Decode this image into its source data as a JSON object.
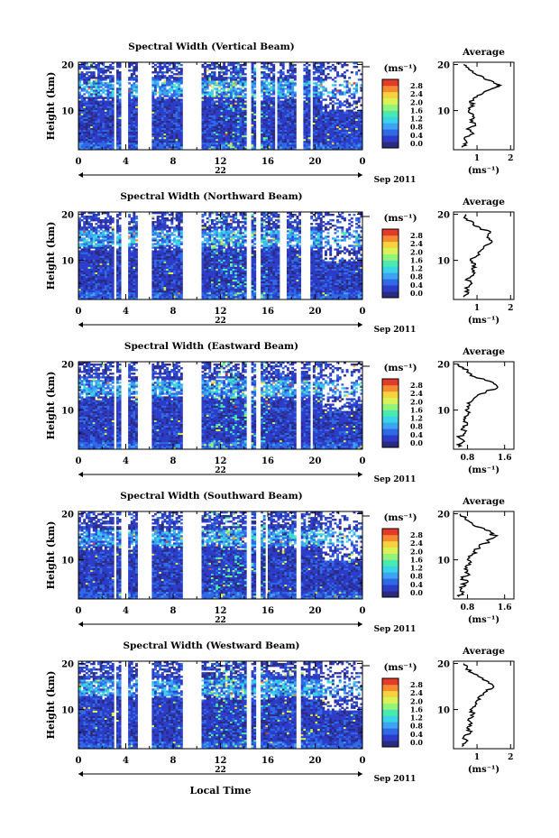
{
  "page": {
    "bottom_xlabel": "Local Time"
  },
  "colorbar": {
    "unit": "(ms⁻¹)",
    "ticks": [
      "2.8",
      "2.4",
      "2.0",
      "1.6",
      "1.2",
      "0.8",
      "0.4",
      "0.0"
    ],
    "colors": [
      "#2a2a80",
      "#2c3cc8",
      "#2f6ae6",
      "#3ea3f2",
      "#39d4e6",
      "#49e9b0",
      "#93f37a",
      "#d9f357",
      "#f6d23e",
      "#f48a32",
      "#e33a2a"
    ]
  },
  "chart_data": [
    {
      "type": "heatmap",
      "title": "Spectral Width (Vertical Beam)",
      "ylabel": "Height (km)",
      "ylim": [
        1.5,
        20.5
      ],
      "yticks": [
        "20",
        "10"
      ],
      "xlim": [
        0,
        24
      ],
      "xticks": [
        "0",
        "4",
        "8",
        "12",
        "16",
        "20",
        "0"
      ],
      "date_label": "22",
      "month_label": "Sep 2011",
      "colorbar_range": [
        0.0,
        2.8
      ],
      "gaps_hours": [
        [
          3.0,
          3.3
        ],
        [
          3.7,
          4.1
        ],
        [
          5.0,
          6.1
        ],
        [
          8.9,
          10.3
        ],
        [
          14.3,
          14.6
        ],
        [
          15.1,
          15.3
        ],
        [
          16.6,
          16.9
        ],
        [
          18.3,
          18.9
        ],
        [
          19.6,
          19.8
        ]
      ],
      "average": {
        "title": "Average",
        "xlabel": "(ms⁻¹)",
        "xticks": [
          "1",
          "2"
        ],
        "xlim": [
          0.3,
          2.1
        ],
        "yticks": [
          "20",
          "10"
        ],
        "profile": [
          [
            2,
            0.55
          ],
          [
            3,
            0.7
          ],
          [
            4,
            0.62
          ],
          [
            5,
            0.9
          ],
          [
            6,
            0.7
          ],
          [
            7,
            0.95
          ],
          [
            8,
            0.8
          ],
          [
            9,
            0.9
          ],
          [
            10,
            0.75
          ],
          [
            11,
            0.9
          ],
          [
            12,
            0.78
          ],
          [
            13,
            1.0
          ],
          [
            14,
            1.2
          ],
          [
            15,
            1.55
          ],
          [
            15.5,
            1.7
          ],
          [
            16,
            1.5
          ],
          [
            17,
            1.2
          ],
          [
            18,
            0.95
          ],
          [
            19,
            0.75
          ],
          [
            20,
            0.6
          ]
        ]
      }
    },
    {
      "type": "heatmap",
      "title": "Spectral Width (Northward Beam)",
      "ylabel": "Height (km)",
      "ylim": [
        1.5,
        20.5
      ],
      "yticks": [
        "20",
        "10"
      ],
      "xlim": [
        0,
        24
      ],
      "xticks": [
        "0",
        "4",
        "8",
        "12",
        "16",
        "20",
        "0"
      ],
      "date_label": "22",
      "month_label": "Sep 2011",
      "colorbar_range": [
        0.0,
        2.8
      ],
      "gaps_hours": [
        [
          3.0,
          3.3
        ],
        [
          3.7,
          4.1
        ],
        [
          5.0,
          6.1
        ],
        [
          8.9,
          10.3
        ],
        [
          14.3,
          14.6
        ],
        [
          15.1,
          15.3
        ],
        [
          17.1,
          17.5
        ],
        [
          18.9,
          19.5
        ]
      ],
      "average": {
        "title": "Average",
        "xlabel": "(ms⁻¹)",
        "xticks": [
          "1",
          "2"
        ],
        "xlim": [
          0.3,
          2.1
        ],
        "yticks": [
          "20",
          "10"
        ],
        "profile": [
          [
            2,
            0.6
          ],
          [
            3,
            0.75
          ],
          [
            4,
            0.65
          ],
          [
            5,
            0.85
          ],
          [
            6,
            0.7
          ],
          [
            7,
            0.9
          ],
          [
            8,
            0.85
          ],
          [
            9,
            0.95
          ],
          [
            10,
            0.8
          ],
          [
            11,
            1.0
          ],
          [
            12,
            1.1
          ],
          [
            13,
            1.2
          ],
          [
            14,
            1.45
          ],
          [
            15,
            1.3
          ],
          [
            16,
            1.4
          ],
          [
            17,
            1.1
          ],
          [
            18,
            0.9
          ],
          [
            19,
            0.7
          ],
          [
            20,
            0.65
          ]
        ]
      }
    },
    {
      "type": "heatmap",
      "title": "Spectral Width (Eastward Beam)",
      "ylabel": "Height (km)",
      "ylim": [
        1.5,
        20.5
      ],
      "yticks": [
        "20",
        "10"
      ],
      "xlim": [
        0,
        24
      ],
      "xticks": [
        "0",
        "4",
        "8",
        "12",
        "16",
        "20",
        "0"
      ],
      "date_label": "22",
      "month_label": "Sep 2011",
      "colorbar_range": [
        0.0,
        2.8
      ],
      "gaps_hours": [
        [
          3.0,
          3.3
        ],
        [
          3.7,
          4.1
        ],
        [
          5.0,
          6.1
        ],
        [
          8.9,
          10.3
        ],
        [
          14.3,
          14.6
        ],
        [
          15.1,
          15.3
        ],
        [
          18.3,
          18.8
        ],
        [
          19.6,
          19.9
        ]
      ],
      "average": {
        "title": "Average",
        "xlabel": "(ms⁻¹)",
        "xticks": [
          "0.8",
          "1.6"
        ],
        "xlim": [
          0.5,
          1.8
        ],
        "yticks": [
          "20",
          "10"
        ],
        "profile": [
          [
            2,
            0.6
          ],
          [
            3,
            0.7
          ],
          [
            4,
            0.62
          ],
          [
            5,
            0.75
          ],
          [
            6,
            0.68
          ],
          [
            7,
            0.8
          ],
          [
            8,
            0.72
          ],
          [
            9,
            0.82
          ],
          [
            10,
            0.76
          ],
          [
            11,
            0.85
          ],
          [
            12,
            0.9
          ],
          [
            13,
            1.0
          ],
          [
            14,
            1.2
          ],
          [
            15,
            1.45
          ],
          [
            16,
            1.35
          ],
          [
            17,
            1.0
          ],
          [
            18,
            0.85
          ],
          [
            19,
            0.7
          ],
          [
            20,
            0.62
          ]
        ]
      }
    },
    {
      "type": "heatmap",
      "title": "Spectral Width (Southward Beam)",
      "ylabel": "Height (km)",
      "ylim": [
        1.5,
        20.5
      ],
      "yticks": [
        "20",
        "10"
      ],
      "xlim": [
        0,
        24
      ],
      "xticks": [
        "0",
        "4",
        "8",
        "12",
        "16",
        "20",
        "0"
      ],
      "date_label": "22",
      "month_label": "Sep 2011",
      "colorbar_range": [
        0.0,
        2.8
      ],
      "gaps_hours": [
        [
          3.0,
          3.3
        ],
        [
          3.7,
          4.1
        ],
        [
          5.0,
          6.1
        ],
        [
          8.9,
          10.3
        ],
        [
          14.3,
          14.6
        ],
        [
          15.1,
          15.3
        ],
        [
          15.8,
          16.0
        ],
        [
          18.3,
          18.8
        ]
      ],
      "average": {
        "title": "Average",
        "xlabel": "(ms⁻¹)",
        "xticks": [
          "0.8",
          "1.6"
        ],
        "xlim": [
          0.5,
          1.8
        ],
        "yticks": [
          "20",
          "10"
        ],
        "profile": [
          [
            2,
            0.62
          ],
          [
            3,
            0.72
          ],
          [
            4,
            0.64
          ],
          [
            5,
            0.78
          ],
          [
            6,
            0.7
          ],
          [
            7,
            0.82
          ],
          [
            8,
            0.74
          ],
          [
            9,
            0.86
          ],
          [
            10,
            0.8
          ],
          [
            11,
            0.9
          ],
          [
            12,
            0.95
          ],
          [
            13,
            1.05
          ],
          [
            14,
            1.25
          ],
          [
            15,
            1.4
          ],
          [
            16,
            1.3
          ],
          [
            17,
            1.1
          ],
          [
            18,
            0.9
          ],
          [
            19,
            0.75
          ],
          [
            20,
            0.65
          ]
        ]
      }
    },
    {
      "type": "heatmap",
      "title": "Spectral Width (Westward Beam)",
      "ylabel": "Height (km)",
      "ylim": [
        1.5,
        20.5
      ],
      "yticks": [
        "20",
        "10"
      ],
      "xlim": [
        0,
        24
      ],
      "xticks": [
        "0",
        "4",
        "8",
        "12",
        "16",
        "20",
        "0"
      ],
      "date_label": "22",
      "month_label": "Sep 2011",
      "colorbar_range": [
        0.0,
        2.8
      ],
      "gaps_hours": [
        [
          3.0,
          3.3
        ],
        [
          3.7,
          4.1
        ],
        [
          5.0,
          6.1
        ],
        [
          8.9,
          10.3
        ],
        [
          14.3,
          14.6
        ],
        [
          15.1,
          15.3
        ],
        [
          18.3,
          18.8
        ]
      ],
      "average": {
        "title": "Average",
        "xlabel": "(ms⁻¹)",
        "xticks": [
          "1",
          "2"
        ],
        "xlim": [
          0.3,
          2.1
        ],
        "yticks": [
          "20",
          "10"
        ],
        "profile": [
          [
            2,
            0.55
          ],
          [
            3,
            0.68
          ],
          [
            4,
            0.6
          ],
          [
            5,
            0.8
          ],
          [
            6,
            0.7
          ],
          [
            7,
            0.85
          ],
          [
            8,
            0.75
          ],
          [
            9,
            0.9
          ],
          [
            10,
            0.8
          ],
          [
            11,
            0.95
          ],
          [
            12,
            1.0
          ],
          [
            13,
            1.1
          ],
          [
            14,
            1.3
          ],
          [
            15,
            1.5
          ],
          [
            16,
            1.35
          ],
          [
            17,
            1.1
          ],
          [
            18,
            0.85
          ],
          [
            19,
            0.7
          ],
          [
            20,
            0.6
          ]
        ]
      }
    }
  ]
}
